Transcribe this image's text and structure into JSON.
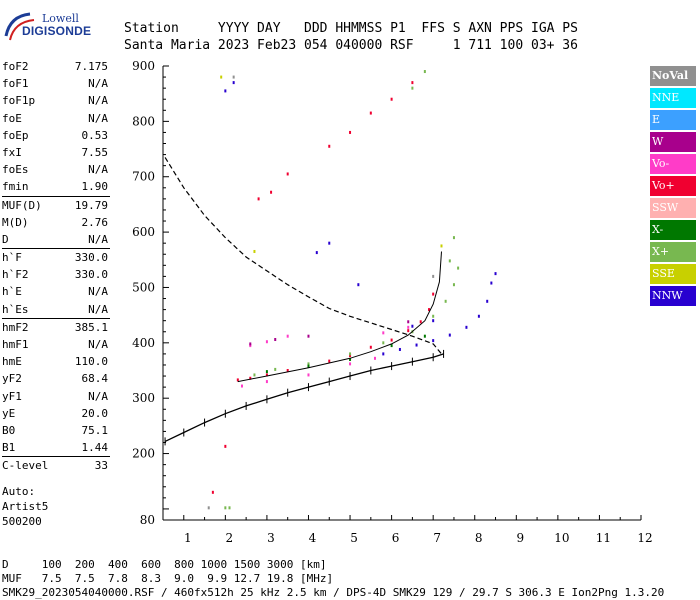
{
  "logo": {
    "line1": "Lowell",
    "line2": "DIGISONDE"
  },
  "header": {
    "line1": "Station     YYYY DAY   DDD HHMMSS P1  FFS S AXN PPS IGA PS",
    "line2": "Santa Maria 2023 Feb23 054 040000 RSF     1 711 100 03+ 36"
  },
  "params": {
    "group1": [
      {
        "k": "foF2",
        "v": "7.175"
      },
      {
        "k": "foF1",
        "v": "N/A"
      },
      {
        "k": "foF1p",
        "v": "N/A"
      },
      {
        "k": "foE",
        "v": "N/A"
      },
      {
        "k": "foEp",
        "v": "0.53"
      },
      {
        "k": "fxI",
        "v": "7.55"
      },
      {
        "k": "foEs",
        "v": "N/A"
      },
      {
        "k": "fmin",
        "v": "1.90"
      }
    ],
    "group2": [
      {
        "k": "MUF(D)",
        "v": "19.79"
      },
      {
        "k": "M(D)",
        "v": "2.76"
      },
      {
        "k": "D",
        "v": "N/A"
      }
    ],
    "group3": [
      {
        "k": "h`F",
        "v": "330.0"
      },
      {
        "k": "h`F2",
        "v": "330.0"
      },
      {
        "k": "h`E",
        "v": "N/A"
      },
      {
        "k": "h`Es",
        "v": "N/A"
      }
    ],
    "group4": [
      {
        "k": "hmF2",
        "v": "385.1"
      },
      {
        "k": "hmF1",
        "v": "N/A"
      },
      {
        "k": "hmE",
        "v": "110.0"
      },
      {
        "k": "yF2",
        "v": "68.4"
      },
      {
        "k": "yF1",
        "v": "N/A"
      },
      {
        "k": "yE",
        "v": "20.0"
      },
      {
        "k": "B0",
        "v": "75.1"
      },
      {
        "k": "B1",
        "v": "1.44"
      }
    ],
    "group5": [
      {
        "k": "C-level",
        "v": "33"
      }
    ]
  },
  "auto": {
    "l1": "Auto:",
    "l2": "Artist5",
    "l3": "500200"
  },
  "legend": [
    {
      "label": "NoVal",
      "color": "#909090"
    },
    {
      "label": "NNE",
      "color": "#00e8ff"
    },
    {
      "label": "E",
      "color": "#3ca0ff"
    },
    {
      "label": "W",
      "color": "#a8008c"
    },
    {
      "label": "Vo-",
      "color": "#ff3cc8"
    },
    {
      "label": "Vo+",
      "color": "#f00030"
    },
    {
      "label": "SSW",
      "color": "#ffb0b0"
    },
    {
      "label": "X-",
      "color": "#007800"
    },
    {
      "label": "X+",
      "color": "#78b850"
    },
    {
      "label": "SSE",
      "color": "#c8d000"
    },
    {
      "label": "NNW",
      "color": "#2800d0"
    }
  ],
  "footer": {
    "l1": "D     100  200  400  600  800 1000 1500 3000 [km]",
    "l2": "MUF   7.5  7.5  7.8  8.3  9.0  9.9 12.7 19.8 [MHz]",
    "l3": "SMK29_2023054040000.RSF / 460fx512h 25 kHz 2.5 km / DPS-4D SMK29 129 / 29.7 S 306.3 E Ion2Png 1.3.20"
  },
  "chart_data": {
    "type": "scatter",
    "xlabel": "",
    "ylabel": "",
    "xlim": [
      0.5,
      12
    ],
    "ylim": [
      80,
      900
    ],
    "xticks": [
      1,
      2,
      3,
      4,
      5,
      6,
      7,
      8,
      9,
      10,
      11,
      12
    ],
    "yticks": [
      200,
      300,
      400,
      500,
      600,
      700,
      800,
      900
    ],
    "grid": false,
    "legend_position": "right",
    "series": [
      {
        "name": "Vo+",
        "color": "#f00030",
        "points": [
          [
            2.3,
            333
          ],
          [
            2.6,
            336
          ],
          [
            3.0,
            342
          ],
          [
            3.5,
            350
          ],
          [
            4.0,
            358
          ],
          [
            4.5,
            367
          ],
          [
            5.0,
            377
          ],
          [
            5.5,
            392
          ],
          [
            6.0,
            405
          ],
          [
            6.4,
            422
          ],
          [
            6.7,
            438
          ],
          [
            6.9,
            460
          ],
          [
            7.0,
            488
          ],
          [
            2.8,
            660
          ],
          [
            3.1,
            672
          ],
          [
            3.5,
            705
          ],
          [
            4.5,
            755
          ],
          [
            5.0,
            780
          ],
          [
            5.5,
            815
          ],
          [
            6.0,
            840
          ],
          [
            6.5,
            870
          ],
          [
            2.0,
            213
          ],
          [
            1.7,
            130
          ]
        ]
      },
      {
        "name": "Vo-",
        "color": "#ff3cc8",
        "points": [
          [
            2.4,
            322
          ],
          [
            3.0,
            330
          ],
          [
            4.0,
            342
          ],
          [
            5.0,
            362
          ],
          [
            5.6,
            372
          ],
          [
            2.6,
            395
          ],
          [
            3.0,
            402
          ],
          [
            3.5,
            412
          ],
          [
            5.8,
            418
          ],
          [
            6.4,
            428
          ]
        ]
      },
      {
        "name": "X+",
        "color": "#78b850",
        "points": [
          [
            2.7,
            342
          ],
          [
            3.2,
            352
          ],
          [
            4.0,
            362
          ],
          [
            5.0,
            380
          ],
          [
            5.8,
            400
          ],
          [
            6.5,
            420
          ],
          [
            7.0,
            448
          ],
          [
            7.3,
            475
          ],
          [
            7.5,
            505
          ],
          [
            7.6,
            535
          ],
          [
            6.5,
            860
          ],
          [
            6.8,
            890
          ],
          [
            7.4,
            548
          ],
          [
            7.5,
            590
          ],
          [
            2.0,
            102
          ],
          [
            2.1,
            102
          ]
        ]
      },
      {
        "name": "X-",
        "color": "#007800",
        "points": [
          [
            3.0,
            348
          ],
          [
            4.0,
            358
          ],
          [
            5.0,
            370
          ],
          [
            6.0,
            395
          ],
          [
            6.8,
            412
          ]
        ]
      },
      {
        "name": "NNW",
        "color": "#2800d0",
        "points": [
          [
            5.8,
            380
          ],
          [
            6.2,
            388
          ],
          [
            6.6,
            396
          ],
          [
            7.0,
            404
          ],
          [
            7.4,
            414
          ],
          [
            7.8,
            428
          ],
          [
            8.1,
            448
          ],
          [
            8.3,
            475
          ],
          [
            8.4,
            508
          ],
          [
            8.5,
            525
          ],
          [
            6.5,
            430
          ],
          [
            7.0,
            440
          ],
          [
            4.2,
            563
          ],
          [
            4.5,
            580
          ],
          [
            5.2,
            505
          ],
          [
            2.0,
            855
          ],
          [
            2.2,
            870
          ]
        ]
      },
      {
        "name": "W",
        "color": "#a8008c",
        "points": [
          [
            2.6,
            398
          ],
          [
            3.2,
            406
          ],
          [
            4.0,
            412
          ],
          [
            6.4,
            438
          ]
        ]
      },
      {
        "name": "NoVal",
        "color": "#909090",
        "points": [
          [
            2.2,
            880
          ],
          [
            1.6,
            102
          ],
          [
            7.0,
            520
          ]
        ]
      },
      {
        "name": "SSE",
        "color": "#c8d000",
        "points": [
          [
            1.9,
            880
          ],
          [
            2.7,
            565
          ],
          [
            7.2,
            575
          ]
        ]
      }
    ],
    "profile_curve": [
      [
        0.55,
        222
      ],
      [
        1.0,
        238
      ],
      [
        1.5,
        256
      ],
      [
        2.0,
        272
      ],
      [
        2.5,
        286
      ],
      [
        3.0,
        298
      ],
      [
        3.5,
        310
      ],
      [
        4.0,
        320
      ],
      [
        4.5,
        330
      ],
      [
        5.0,
        340
      ],
      [
        5.5,
        350
      ],
      [
        6.0,
        358
      ],
      [
        6.5,
        366
      ],
      [
        7.0,
        374
      ],
      [
        7.25,
        380
      ]
    ],
    "dashed_curve": [
      [
        0.55,
        735
      ],
      [
        1.0,
        680
      ],
      [
        1.5,
        630
      ],
      [
        2.0,
        590
      ],
      [
        2.5,
        555
      ],
      [
        3.0,
        530
      ],
      [
        3.5,
        505
      ],
      [
        4.0,
        483
      ],
      [
        4.5,
        462
      ],
      [
        5.0,
        448
      ],
      [
        5.5,
        436
      ],
      [
        6.0,
        424
      ],
      [
        6.5,
        412
      ],
      [
        7.0,
        398
      ],
      [
        7.2,
        380
      ]
    ],
    "fit_trace": [
      [
        2.3,
        330
      ],
      [
        3.0,
        340
      ],
      [
        4.0,
        355
      ],
      [
        5.0,
        372
      ],
      [
        5.5,
        384
      ],
      [
        6.0,
        398
      ],
      [
        6.4,
        414
      ],
      [
        6.8,
        440
      ],
      [
        7.0,
        470
      ],
      [
        7.15,
        510
      ],
      [
        7.2,
        565
      ]
    ]
  }
}
